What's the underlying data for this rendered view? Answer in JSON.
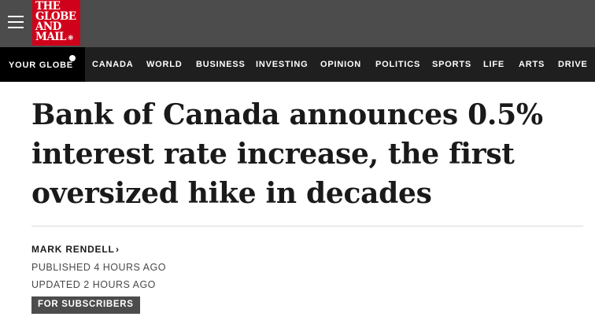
{
  "header": {
    "logo_lines": [
      "THE",
      "GLOBE",
      "AND",
      "MAIL"
    ],
    "brand_color": "#d0021b",
    "menu_icon": "hamburger-menu-icon",
    "logo_mark_icon": "maple-leaf-icon"
  },
  "nav": {
    "your_globe": "YOUR GLOBE",
    "items": [
      "CANADA",
      "WORLD",
      "BUSINESS",
      "INVESTING",
      "OPINION",
      "POLITICS",
      "SPORTS",
      "LIFE",
      "ARTS",
      "DRIVE"
    ]
  },
  "article": {
    "headline_lines": [
      "Bank of Canada announces 0.5%",
      "interest rate increase, the first",
      "oversized hike in decades"
    ],
    "author": "MARK RENDELL",
    "published": "PUBLISHED 4 HOURS AGO",
    "updated": "UPDATED 2 HOURS AGO",
    "badge": "FOR SUBSCRIBERS"
  }
}
